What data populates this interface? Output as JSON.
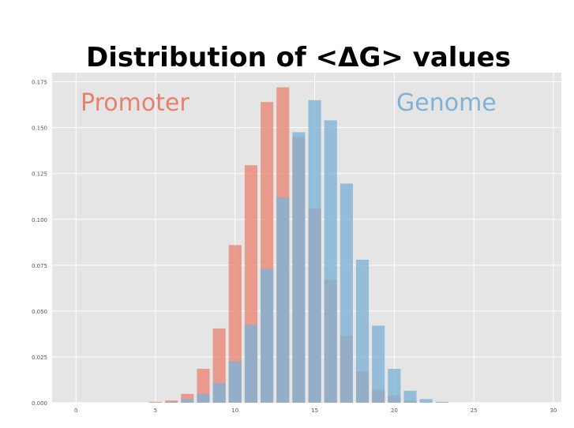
{
  "chart_data": {
    "type": "bar",
    "title": "Distribution of <ΔG> values",
    "xlabel": "",
    "ylabel": "",
    "xlim": [
      -1.5,
      30.5
    ],
    "ylim": [
      0,
      0.18
    ],
    "grid": true,
    "xticks": [
      0,
      5,
      10,
      15,
      20,
      25,
      30
    ],
    "yticks": [
      0.0,
      0.025,
      0.05,
      0.075,
      0.1,
      0.125,
      0.15,
      0.175
    ],
    "ytick_labels": [
      "0.000",
      "0.025",
      "0.050",
      "0.075",
      "0.100",
      "0.125",
      "0.150",
      "0.175"
    ],
    "x": [
      5,
      6,
      7,
      8,
      9,
      10,
      11,
      12,
      13,
      14,
      15,
      16,
      17,
      18,
      19,
      20,
      21,
      22,
      23
    ],
    "series": [
      {
        "name": "Promoter",
        "color": "#e8806e",
        "values": [
          0.0005,
          0.0012,
          0.0048,
          0.0185,
          0.0405,
          0.086,
          0.1295,
          0.164,
          0.172,
          0.145,
          0.106,
          0.067,
          0.0365,
          0.017,
          0.007,
          0.004,
          0.001,
          0.0,
          0.0
        ]
      },
      {
        "name": "Genome",
        "color": "#7eb3d6",
        "values": [
          0.0,
          0.0003,
          0.002,
          0.0048,
          0.0108,
          0.0225,
          0.0425,
          0.073,
          0.112,
          0.1475,
          0.165,
          0.154,
          0.1195,
          0.078,
          0.042,
          0.0185,
          0.0065,
          0.002,
          0.0005
        ]
      }
    ],
    "legend_placement": "inside text labels: Promoter top-left, Genome top-right"
  }
}
